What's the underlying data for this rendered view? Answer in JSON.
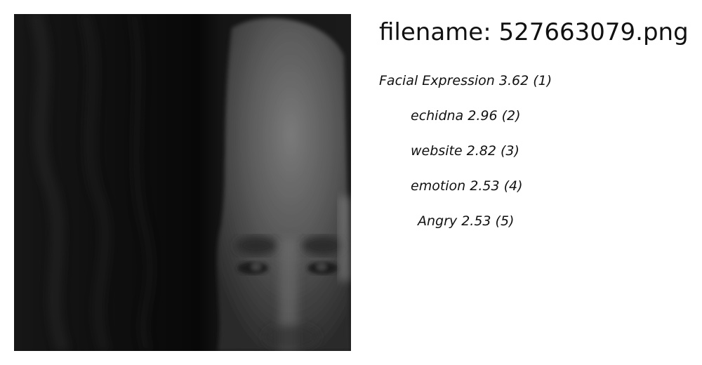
{
  "title": "filename: 527663079.png",
  "labels": [
    "Facial Expression  3.62 (1)",
    "echidna  2.96 (2)",
    "website  2.82 (3)",
    "emotion  2.53 (4)",
    "Angry  2.53 (5)"
  ]
}
